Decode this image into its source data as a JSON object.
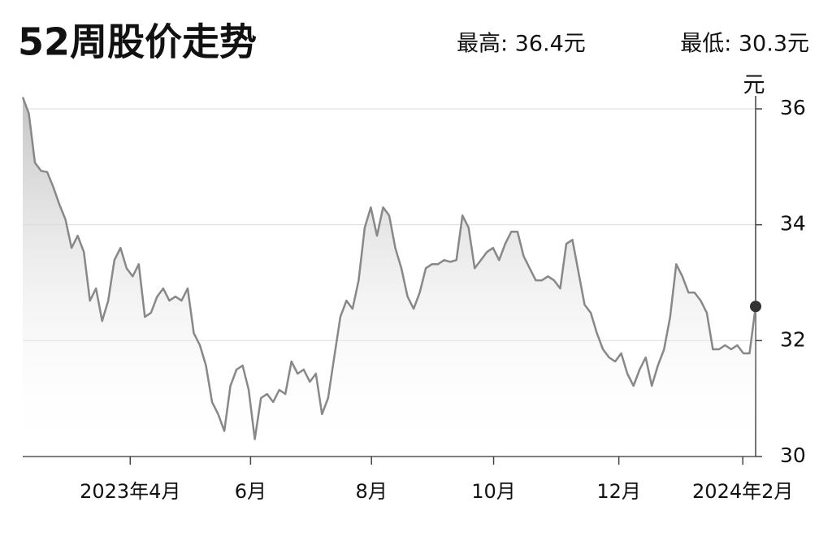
{
  "chart_data": {
    "type": "line",
    "title": "52周股价走势",
    "summary": [
      "最高: 36.4元",
      "最低: 30.3元"
    ],
    "y_unit": "元",
    "values": [
      36.2,
      35.92,
      35.07,
      34.93,
      34.91,
      34.65,
      34.35,
      34.09,
      33.6,
      33.81,
      33.53,
      32.69,
      32.9,
      32.34,
      32.69,
      33.39,
      33.6,
      33.25,
      33.11,
      33.32,
      32.41,
      32.48,
      32.76,
      32.9,
      32.69,
      32.76,
      32.69,
      32.9,
      32.13,
      31.92,
      31.57,
      30.94,
      30.73,
      30.44,
      31.22,
      31.5,
      31.57,
      31.15,
      30.3,
      31.01,
      31.08,
      30.94,
      31.15,
      31.08,
      31.64,
      31.43,
      31.5,
      31.29,
      31.43,
      30.73,
      31.01,
      31.71,
      32.41,
      32.69,
      32.55,
      33.04,
      33.95,
      34.3,
      33.81,
      34.3,
      34.16,
      33.6,
      33.25,
      32.76,
      32.55,
      32.83,
      33.25,
      33.32,
      33.32,
      33.39,
      33.36,
      33.39,
      34.16,
      33.95,
      33.25,
      33.39,
      33.53,
      33.6,
      33.39,
      33.67,
      33.88,
      33.88,
      33.46,
      33.25,
      33.04,
      33.04,
      33.11,
      33.04,
      32.9,
      33.67,
      33.74,
      33.18,
      32.62,
      32.48,
      32.13,
      31.85,
      31.71,
      31.64,
      31.78,
      31.43,
      31.22,
      31.5,
      31.71,
      31.22,
      31.57,
      31.85,
      32.41,
      33.32,
      33.11,
      32.83,
      32.83,
      32.69,
      32.48,
      31.85,
      31.85,
      31.92,
      31.85,
      31.92,
      31.78,
      31.78,
      32.59
    ],
    "color": "#888888",
    "xlim": [
      0,
      120
    ],
    "xticks": [
      {
        "value": 17.6,
        "label": "2023年4月"
      },
      {
        "value": 37.3,
        "label": "6月"
      },
      {
        "value": 57.1,
        "label": "8月"
      },
      {
        "value": 77.1,
        "label": "10月"
      },
      {
        "value": 97.6,
        "label": "12月"
      },
      {
        "value": 117.9,
        "label": "2024年2月"
      }
    ],
    "ylim": [
      30,
      36
    ],
    "yticks": [
      30,
      32,
      34,
      36
    ],
    "grid": true
  }
}
